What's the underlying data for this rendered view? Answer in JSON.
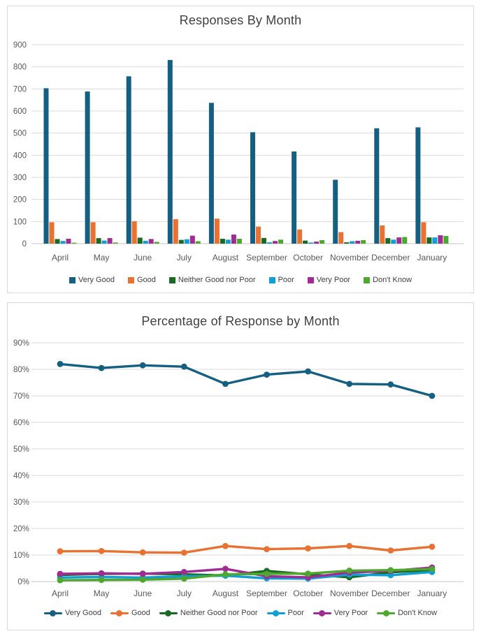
{
  "style": {
    "grid_color": "#D9D9D9",
    "axis_line_color": "#C6C6C6",
    "axis_label_color": "#595959",
    "title_color": "#404040",
    "panel_border": "#D9D9D9"
  },
  "chart_data": [
    {
      "type": "bar",
      "title": "Responses By Month",
      "categories": [
        "April",
        "May",
        "June",
        "July",
        "August",
        "September",
        "October",
        "November",
        "December",
        "January"
      ],
      "yticks": [
        "0",
        "100",
        "200",
        "300",
        "400",
        "500",
        "600",
        "700",
        "800",
        "900"
      ],
      "ylim": [
        0,
        900
      ],
      "grid": true,
      "legend_position": "bottom",
      "series": [
        {
          "name": "Very Good",
          "color": "#156082",
          "values": [
            703,
            688,
            757,
            831,
            637,
            504,
            417,
            289,
            522,
            526
          ]
        },
        {
          "name": "Good",
          "color": "#E97132",
          "values": [
            97,
            97,
            101,
            111,
            113,
            77,
            64,
            52,
            82,
            97
          ]
        },
        {
          "name": "Neither Good nor Poor",
          "color": "#196B24",
          "values": [
            21,
            25,
            27,
            17,
            22,
            26,
            14,
            6,
            25,
            28
          ]
        },
        {
          "name": "Poor",
          "color": "#0F9ED5",
          "values": [
            12,
            14,
            13,
            20,
            18,
            6,
            5,
            11,
            18,
            28
          ]
        },
        {
          "name": "Very Poor",
          "color": "#A02B93",
          "values": [
            22,
            25,
            21,
            36,
            41,
            12,
            9,
            13,
            28,
            38
          ]
        },
        {
          "name": "Don't Know",
          "color": "#4EA72E",
          "values": [
            4,
            5,
            8,
            11,
            22,
            18,
            16,
            16,
            30,
            35
          ]
        }
      ]
    },
    {
      "type": "line",
      "title": "Percentage of Response by Month",
      "categories": [
        "April",
        "May",
        "June",
        "July",
        "August",
        "September",
        "October",
        "November",
        "December",
        "January"
      ],
      "yticks": [
        "0%",
        "10%",
        "20%",
        "30%",
        "40%",
        "50%",
        "60%",
        "70%",
        "80%",
        "90%"
      ],
      "ylim": [
        0,
        90
      ],
      "grid": true,
      "legend_position": "bottom",
      "series": [
        {
          "name": "Very Good",
          "color": "#156082",
          "values": [
            82,
            80.5,
            81.5,
            81,
            74.5,
            78,
            79.2,
            74.5,
            74.3,
            70
          ]
        },
        {
          "name": "Good",
          "color": "#E97132",
          "values": [
            11.4,
            11.5,
            11,
            10.9,
            13.4,
            12.2,
            12.5,
            13.4,
            11.7,
            13.1
          ]
        },
        {
          "name": "Neither Good nor Poor",
          "color": "#196B24",
          "values": [
            2.5,
            2.9,
            3.0,
            2.7,
            2.3,
            4.0,
            2.7,
            1.6,
            3.5,
            4.3
          ]
        },
        {
          "name": "Poor",
          "color": "#0F9ED5",
          "values": [
            1.5,
            1.7,
            1.5,
            2.0,
            2.2,
            1.2,
            1.1,
            2.6,
            2.4,
            3.6
          ]
        },
        {
          "name": "Very Poor",
          "color": "#A02B93",
          "values": [
            2.9,
            3.1,
            2.9,
            3.6,
            4.8,
            2.0,
            1.6,
            3.4,
            4.0,
            5.3
          ]
        },
        {
          "name": "Don't Know",
          "color": "#4EA72E",
          "values": [
            0.5,
            0.6,
            0.7,
            1.1,
            2.7,
            2.9,
            3.0,
            4.1,
            4.3,
            4.7
          ]
        }
      ]
    }
  ]
}
